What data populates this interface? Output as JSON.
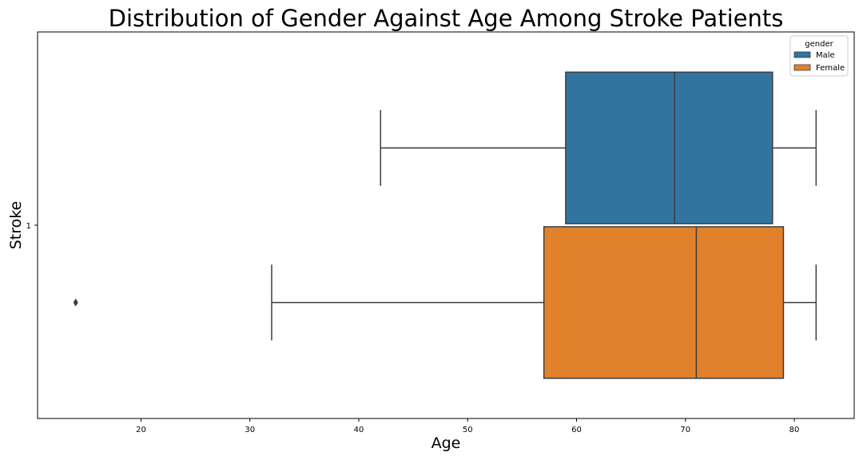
{
  "chart_data": {
    "type": "boxplot",
    "orientation": "horizontal",
    "title": "Distribution of Gender Against Age Among Stroke Patients",
    "xlabel": "Age",
    "ylabel": "Stroke",
    "xlim": [
      10.5,
      85.5
    ],
    "x_ticks": [
      20,
      30,
      40,
      50,
      60,
      70,
      80
    ],
    "categories": [
      "1"
    ],
    "legend": {
      "title": "gender",
      "placement": "top-right"
    },
    "grid": false,
    "series": [
      {
        "name": "Male",
        "color": "#3274a1",
        "whisker_low": 42,
        "q1": 59,
        "median": 69,
        "q3": 78,
        "whisker_high": 82,
        "outliers": []
      },
      {
        "name": "Female",
        "color": "#e1812c",
        "whisker_low": 32,
        "q1": 57,
        "median": 71,
        "q3": 79,
        "whisker_high": 82,
        "outliers": [
          14
        ]
      }
    ]
  }
}
